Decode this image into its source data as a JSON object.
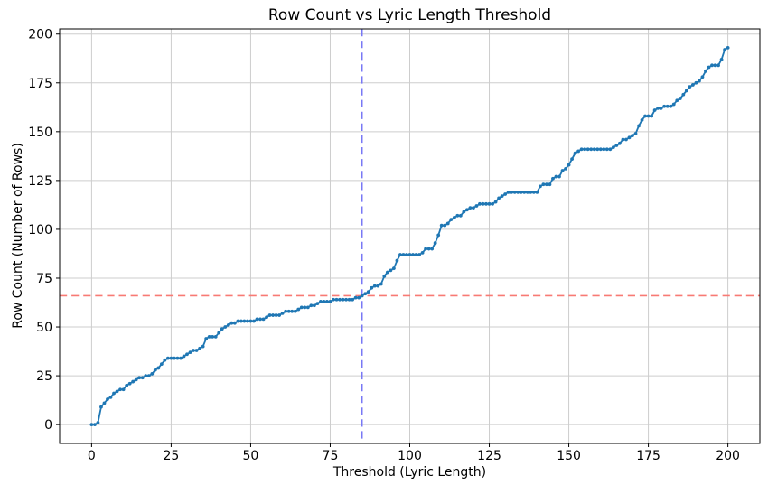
{
  "figure": {
    "title": "Row Count vs Lyric Length Threshold",
    "xlabel": "Threshold (Lyric Length)",
    "ylabel": "Row Count (Number of Rows)"
  },
  "chart_data": {
    "type": "line",
    "title": "Row Count vs Lyric Length Threshold",
    "xlabel": "Threshold (Lyric Length)",
    "ylabel": "Row Count (Number of Rows)",
    "x_ticks": [
      0,
      25,
      50,
      75,
      100,
      125,
      150,
      175,
      200
    ],
    "y_ticks": [
      0,
      25,
      50,
      75,
      100,
      125,
      150,
      175,
      200
    ],
    "xlim": [
      -10.05,
      210.05
    ],
    "ylim": [
      -9.65,
      202.65
    ],
    "grid": true,
    "legend_position": "none",
    "line_color": "#1f77b4",
    "marker": "point",
    "grid_color": "#cdcdcd",
    "spine_color": "#000000",
    "x": [
      0,
      1,
      2,
      3,
      4,
      5,
      6,
      7,
      8,
      9,
      10,
      11,
      12,
      13,
      14,
      15,
      16,
      17,
      18,
      19,
      20,
      21,
      22,
      23,
      24,
      25,
      26,
      27,
      28,
      29,
      30,
      31,
      32,
      33,
      34,
      35,
      36,
      37,
      38,
      39,
      40,
      41,
      42,
      43,
      44,
      45,
      46,
      47,
      48,
      49,
      50,
      51,
      52,
      53,
      54,
      55,
      56,
      57,
      58,
      59,
      60,
      61,
      62,
      63,
      64,
      65,
      66,
      67,
      68,
      69,
      70,
      71,
      72,
      73,
      74,
      75,
      76,
      77,
      78,
      79,
      80,
      81,
      82,
      83,
      84,
      85,
      86,
      87,
      88,
      89,
      90,
      91,
      92,
      93,
      94,
      95,
      96,
      97,
      98,
      99,
      100,
      101,
      102,
      103,
      104,
      105,
      106,
      107,
      108,
      109,
      110,
      111,
      112,
      113,
      114,
      115,
      116,
      117,
      118,
      119,
      120,
      121,
      122,
      123,
      124,
      125,
      126,
      127,
      128,
      129,
      130,
      131,
      132,
      133,
      134,
      135,
      136,
      137,
      138,
      139,
      140,
      141,
      142,
      143,
      144,
      145,
      146,
      147,
      148,
      149,
      150,
      151,
      152,
      153,
      154,
      155,
      156,
      157,
      158,
      159,
      160,
      161,
      162,
      163,
      164,
      165,
      166,
      167,
      168,
      169,
      170,
      171,
      172,
      173,
      174,
      175,
      176,
      177,
      178,
      179,
      180,
      181,
      182,
      183,
      184,
      185,
      186,
      187,
      188,
      189,
      190,
      191,
      192,
      193,
      194,
      195,
      196,
      197,
      198,
      199,
      200
    ],
    "y": [
      0,
      0,
      1,
      9,
      11,
      13,
      14,
      16,
      17,
      18,
      18,
      20,
      21,
      22,
      23,
      24,
      24,
      25,
      25,
      26,
      28,
      29,
      31,
      33,
      34,
      34,
      34,
      34,
      34,
      35,
      36,
      37,
      38,
      38,
      39,
      40,
      44,
      45,
      45,
      45,
      47,
      49,
      50,
      51,
      52,
      52,
      53,
      53,
      53,
      53,
      53,
      53,
      54,
      54,
      54,
      55,
      56,
      56,
      56,
      56,
      57,
      58,
      58,
      58,
      58,
      59,
      60,
      60,
      60,
      61,
      61,
      62,
      63,
      63,
      63,
      63,
      64,
      64,
      64,
      64,
      64,
      64,
      64,
      65,
      65,
      66,
      67,
      68,
      70,
      71,
      71,
      72,
      76,
      78,
      79,
      80,
      84,
      87,
      87,
      87,
      87,
      87,
      87,
      87,
      88,
      90,
      90,
      90,
      93,
      97,
      102,
      102,
      103,
      105,
      106,
      107,
      107,
      109,
      110,
      111,
      111,
      112,
      113,
      113,
      113,
      113,
      113,
      114,
      116,
      117,
      118,
      119,
      119,
      119,
      119,
      119,
      119,
      119,
      119,
      119,
      119,
      122,
      123,
      123,
      123,
      126,
      127,
      127,
      130,
      131,
      133,
      136,
      139,
      140,
      141,
      141,
      141,
      141,
      141,
      141,
      141,
      141,
      141,
      141,
      142,
      143,
      144,
      146,
      146,
      147,
      148,
      149,
      153,
      156,
      158,
      158,
      158,
      161,
      162,
      162,
      163,
      163,
      163,
      164,
      166,
      167,
      169,
      171,
      173,
      174,
      175,
      176,
      178,
      181,
      183,
      184,
      184,
      184,
      187,
      192,
      193
    ],
    "reference_lines": [
      {
        "orientation": "vertical",
        "x": 85,
        "style": "dashed",
        "color": "#7878f5"
      },
      {
        "orientation": "horizontal",
        "y": 66,
        "style": "dashed",
        "color": "#f87a74"
      }
    ]
  }
}
